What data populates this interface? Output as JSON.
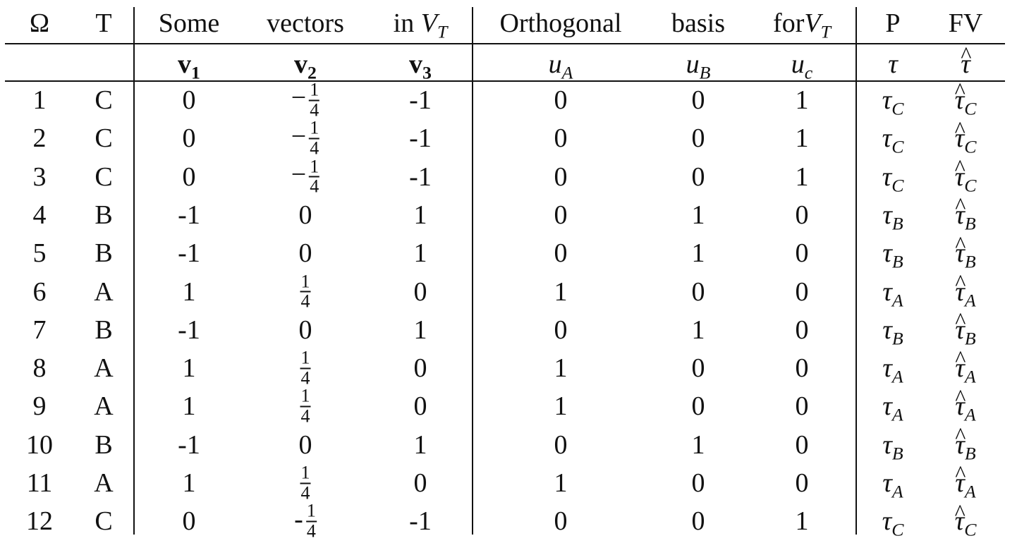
{
  "header": {
    "omega": "Ω",
    "t": "T",
    "some": "Some",
    "vectors": "vectors",
    "in_vt_text": "in",
    "v_symbol": "V",
    "t_sub": "T",
    "orthogonal": "Orthogonal",
    "basis": "basis",
    "for_text": "for",
    "p": "P",
    "fv": "FV"
  },
  "subheader": {
    "v1": "v",
    "v1_sub": "1",
    "v2": "v",
    "v2_sub": "2",
    "v3": "v",
    "v3_sub": "3",
    "ua": "u",
    "ua_sub": "A",
    "ub": "u",
    "ub_sub": "B",
    "uc": "u",
    "uc_sub": "c",
    "tau": "τ",
    "tau_hat": "τ",
    "hat": "^"
  },
  "rows": [
    {
      "omega": "1",
      "type": "C",
      "v1": "0",
      "v2": {
        "sign": "−",
        "num": "1",
        "den": "4"
      },
      "v3": "-1",
      "ua": "0",
      "ub": "0",
      "uc": "1",
      "p": "τ",
      "p_sub": "C",
      "fv": "τ",
      "fv_sub": "C"
    },
    {
      "omega": "2",
      "type": "C",
      "v1": "0",
      "v2": {
        "sign": "−",
        "num": "1",
        "den": "4"
      },
      "v3": "-1",
      "ua": "0",
      "ub": "0",
      "uc": "1",
      "p": "τ",
      "p_sub": "C",
      "fv": "τ",
      "fv_sub": "C"
    },
    {
      "omega": "3",
      "type": "C",
      "v1": "0",
      "v2": {
        "sign": "−",
        "num": "1",
        "den": "4"
      },
      "v3": "-1",
      "ua": "0",
      "ub": "0",
      "uc": "1",
      "p": "τ",
      "p_sub": "C",
      "fv": "τ",
      "fv_sub": "C"
    },
    {
      "omega": "4",
      "type": "B",
      "v1": "-1",
      "v2": "0",
      "v3": "1",
      "ua": "0",
      "ub": "1",
      "uc": "0",
      "p": "τ",
      "p_sub": "B",
      "fv": "τ",
      "fv_sub": "B"
    },
    {
      "omega": "5",
      "type": "B",
      "v1": "-1",
      "v2": "0",
      "v3": "1",
      "ua": "0",
      "ub": "1",
      "uc": "0",
      "p": "τ",
      "p_sub": "B",
      "fv": "τ",
      "fv_sub": "B"
    },
    {
      "omega": "6",
      "type": "A",
      "v1": "1",
      "v2": {
        "sign": "",
        "num": "1",
        "den": "4"
      },
      "v3": "0",
      "ua": "1",
      "ub": "0",
      "uc": "0",
      "p": "τ",
      "p_sub": "A",
      "fv": "τ",
      "fv_sub": "A"
    },
    {
      "omega": "7",
      "type": "B",
      "v1": "-1",
      "v2": "0",
      "v3": "1",
      "ua": "0",
      "ub": "1",
      "uc": "0",
      "p": "τ",
      "p_sub": "B",
      "fv": "τ",
      "fv_sub": "B"
    },
    {
      "omega": "8",
      "type": "A",
      "v1": "1",
      "v2": {
        "sign": "",
        "num": "1",
        "den": "4"
      },
      "v3": "0",
      "ua": "1",
      "ub": "0",
      "uc": "0",
      "p": "τ",
      "p_sub": "A",
      "fv": "τ",
      "fv_sub": "A"
    },
    {
      "omega": "9",
      "type": "A",
      "v1": "1",
      "v2": {
        "sign": "",
        "num": "1",
        "den": "4"
      },
      "v3": "0",
      "ua": "1",
      "ub": "0",
      "uc": "0",
      "p": "τ",
      "p_sub": "A",
      "fv": "τ",
      "fv_sub": "A"
    },
    {
      "omega": "10",
      "type": "B",
      "v1": "-1",
      "v2": "0",
      "v3": "1",
      "ua": "0",
      "ub": "1",
      "uc": "0",
      "p": "τ",
      "p_sub": "B",
      "fv": "τ",
      "fv_sub": "B"
    },
    {
      "omega": "11",
      "type": "A",
      "v1": "1",
      "v2": {
        "sign": "",
        "num": "1",
        "den": "4"
      },
      "v3": "0",
      "ua": "1",
      "ub": "0",
      "uc": "0",
      "p": "τ",
      "p_sub": "A",
      "fv": "τ",
      "fv_sub": "A"
    },
    {
      "omega": "12",
      "type": "C",
      "v1": "0",
      "v2": {
        "sign": "-",
        "num": "1",
        "den": "4"
      },
      "v3": "-1",
      "ua": "0",
      "ub": "0",
      "uc": "1",
      "p": "τ",
      "p_sub": "C",
      "fv": "τ",
      "fv_sub": "C"
    }
  ]
}
